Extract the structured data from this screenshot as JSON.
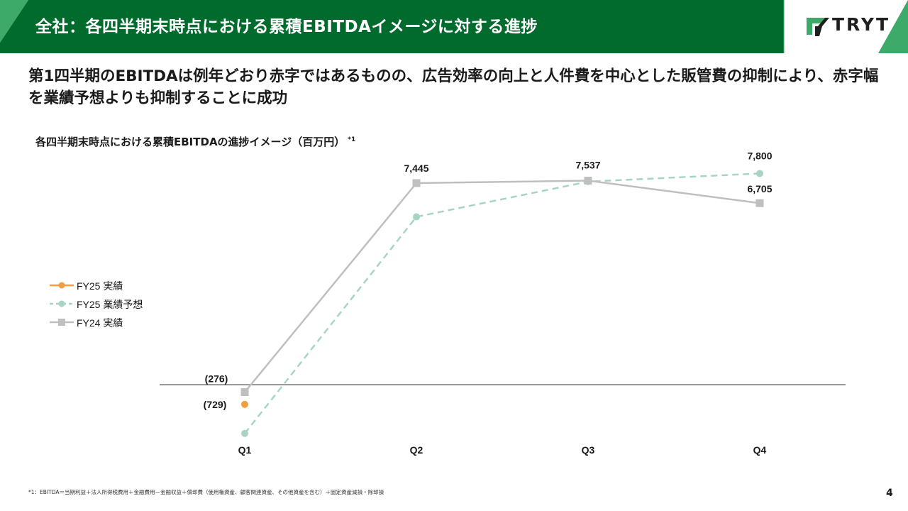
{
  "header": {
    "title": "全社：各四半期末時点における累積EBITDAイメージに対する進捗",
    "logo_text": "TRYT",
    "color": "#006b2c",
    "accent": "#3daa6a"
  },
  "headline": "第1四半期のEBITDAは例年どおり赤字ではあるものの、広告効率の向上と人件費を中心とした販管費の抑制により、赤字幅を業績予想よりも抑制することに成功",
  "chart_title": "各四半期末時点における累積EBITDAの進捗イメージ（百万円）",
  "chart_title_note": "*1",
  "chart_data": {
    "type": "line",
    "categories": [
      "Q1",
      "Q2",
      "Q3",
      "Q4"
    ],
    "series": [
      {
        "name": "FY25 実績",
        "values": [
          -729,
          null,
          null,
          null
        ],
        "color": "#f0a040",
        "style": "solid",
        "marker": "circle"
      },
      {
        "name": "FY25 業績予想",
        "values": [
          -1800,
          6200,
          7500,
          7800
        ],
        "color": "#a8d5c2",
        "style": "dashed",
        "marker": "circle"
      },
      {
        "name": "FY24 実績",
        "values": [
          -276,
          7445,
          7537,
          6705
        ],
        "color": "#bfbfbf",
        "style": "solid",
        "marker": "square"
      }
    ],
    "data_labels": [
      {
        "text": "(276)",
        "category": "Q1",
        "value": -276
      },
      {
        "text": "(729)",
        "category": "Q1",
        "value": -729
      },
      {
        "text": "7,445",
        "category": "Q2",
        "value": 7445
      },
      {
        "text": "7,537",
        "category": "Q3",
        "value": 7537
      },
      {
        "text": "7,800",
        "category": "Q4",
        "value": 7800
      },
      {
        "text": "6,705",
        "category": "Q4",
        "value": 6705
      }
    ],
    "ylim": [
      -2200,
      9000
    ],
    "grid": false,
    "legend_position": "left"
  },
  "footnote": "*1：EBITDA＝当期利益＋法人所得税費用＋金融費用－金融収益＋償却費（使用権資産、顧客関連資産、その他資産を含む）＋固定資産減損・除却損",
  "page_number": "4"
}
